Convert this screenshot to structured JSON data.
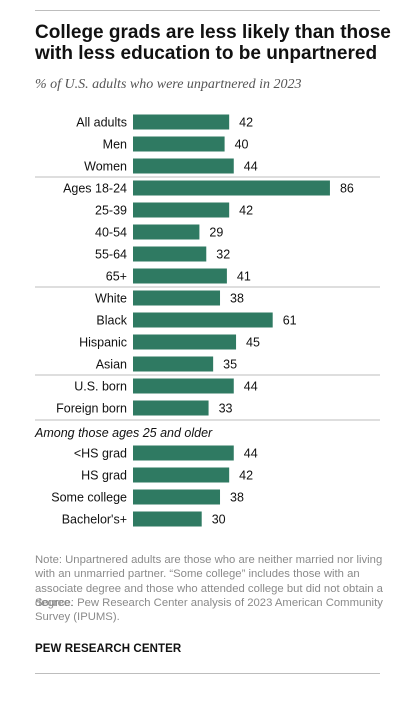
{
  "title": "College grads are less likely than those with less education to be unpartnered",
  "subtitle": "% of U.S. adults who were unpartnered in 2023",
  "note": "Note: Unpartnered adults are those who are neither married nor living with an unmarried partner. “Some college” includes those with an associate degree and those who attended college but did not obtain a degree.",
  "source": "Source: Pew Research Center analysis of 2023 American Community Survey (IPUMS).",
  "brand": "PEW RESEARCH CENTER",
  "colors": {
    "bar": "#2f7a62",
    "text": "#111111",
    "muted": "#8a8a8a",
    "divider": "#bdbdbd"
  },
  "chart_data": {
    "type": "bar",
    "orientation": "horizontal",
    "categories": [
      "All adults",
      "Men",
      "Women",
      "Ages 18-24",
      "25-39",
      "40-54",
      "55-64",
      "65+",
      "White",
      "Black",
      "Hispanic",
      "Asian",
      "U.S. born",
      "Foreign born",
      "<HS grad",
      "HS grad",
      "Some college",
      "Bachelor's+"
    ],
    "values": [
      42,
      40,
      44,
      86,
      42,
      29,
      32,
      41,
      38,
      61,
      45,
      35,
      44,
      33,
      44,
      42,
      38,
      30
    ],
    "group_heading": "Among those ages 25 and older",
    "group_heading_before_index": 14,
    "dividers_before_index": [
      3,
      8,
      12
    ],
    "xlim": [
      0,
      100
    ],
    "data_labels": true,
    "grid": false,
    "legend": "none"
  }
}
